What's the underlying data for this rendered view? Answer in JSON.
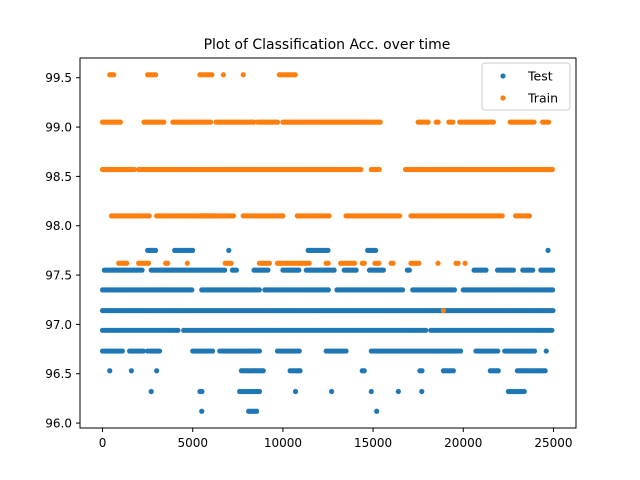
{
  "chart_data": {
    "type": "scatter",
    "title": "Plot of Classification Acc. over time",
    "xlabel": "",
    "ylabel": "",
    "xlim": [
      -1250,
      26250
    ],
    "ylim": [
      95.95,
      99.7
    ],
    "x_ticks": [
      0,
      5000,
      10000,
      15000,
      20000,
      25000
    ],
    "x_tick_labels": [
      "0",
      "5000",
      "10000",
      "15000",
      "20000",
      "25000"
    ],
    "y_ticks": [
      96.0,
      96.5,
      97.0,
      97.5,
      98.0,
      98.5,
      99.0,
      99.5
    ],
    "y_tick_labels": [
      "96.0",
      "96.5",
      "97.0",
      "97.5",
      "98.0",
      "98.5",
      "99.0",
      "99.5"
    ],
    "legend_position": "top-right",
    "series": [
      {
        "name": "Test",
        "color": "#1f77b4",
        "bands": [
          {
            "y": 97.75,
            "ranges": [
              [
                2500,
                3000
              ],
              [
                4000,
                5000
              ],
              [
                7000,
                7100
              ],
              [
                11400,
                12600
              ],
              [
                14700,
                15200
              ],
              [
                24700,
                24800
              ]
            ]
          },
          {
            "y": 97.55,
            "ranges": [
              [
                100,
                2200
              ],
              [
                2700,
                6800
              ],
              [
                7200,
                7500
              ],
              [
                8400,
                9200
              ],
              [
                10000,
                10900
              ],
              [
                11300,
                12900
              ],
              [
                13400,
                14100
              ],
              [
                14800,
                15600
              ],
              [
                16900,
                17100
              ],
              [
                20600,
                21300
              ],
              [
                21900,
                22800
              ],
              [
                23300,
                23900
              ],
              [
                24300,
                25000
              ]
            ]
          },
          {
            "y": 97.35,
            "ranges": [
              [
                0,
                5000
              ],
              [
                5500,
                8700
              ],
              [
                9000,
                12600
              ],
              [
                13000,
                16700
              ],
              [
                17200,
                19600
              ],
              [
                20000,
                25000
              ]
            ]
          },
          {
            "y": 97.14,
            "ranges": [
              [
                0,
                25000
              ]
            ]
          },
          {
            "y": 96.94,
            "ranges": [
              [
                0,
                4200
              ],
              [
                4500,
                18000
              ],
              [
                18200,
                25000
              ]
            ]
          },
          {
            "y": 96.73,
            "ranges": [
              [
                0,
                1200
              ],
              [
                1500,
                2300
              ],
              [
                2500,
                3200
              ],
              [
                5000,
                6100
              ],
              [
                6500,
                8800
              ],
              [
                9700,
                11000
              ],
              [
                12400,
                13600
              ],
              [
                14900,
                19900
              ],
              [
                20700,
                22000
              ],
              [
                22300,
                24000
              ],
              [
                24600,
                24700
              ]
            ]
          },
          {
            "y": 96.53,
            "ranges": [
              [
                400,
                500
              ],
              [
                1600,
                1700
              ],
              [
                3000,
                3100
              ],
              [
                7700,
                9000
              ],
              [
                10400,
                11000
              ],
              [
                14400,
                14600
              ],
              [
                17600,
                17800
              ],
              [
                18900,
                19500
              ],
              [
                21500,
                22000
              ],
              [
                23000,
                24600
              ]
            ]
          },
          {
            "y": 96.32,
            "ranges": [
              [
                2700,
                2800
              ],
              [
                5400,
                5600
              ],
              [
                7600,
                8700
              ],
              [
                10700,
                10800
              ],
              [
                12700,
                12800
              ],
              [
                14900,
                15000
              ],
              [
                16400,
                16500
              ],
              [
                17700,
                17800
              ],
              [
                22500,
                23400
              ]
            ]
          },
          {
            "y": 96.12,
            "ranges": [
              [
                5500,
                5600
              ],
              [
                8100,
                8600
              ],
              [
                15200,
                15300
              ]
            ]
          }
        ],
        "singles": []
      },
      {
        "name": "Train",
        "color": "#ff7f0e",
        "bands": [
          {
            "y": 99.53,
            "ranges": [
              [
                400,
                700
              ],
              [
                2500,
                3000
              ],
              [
                5400,
                6100
              ],
              [
                6700,
                6800
              ],
              [
                7800,
                7900
              ],
              [
                9800,
                10700
              ]
            ]
          },
          {
            "y": 99.05,
            "ranges": [
              [
                0,
                1000
              ],
              [
                2300,
                3400
              ],
              [
                3900,
                6000
              ],
              [
                6300,
                8400
              ],
              [
                8600,
                9700
              ],
              [
                10000,
                15400
              ],
              [
                17500,
                18100
              ],
              [
                18500,
                18700
              ],
              [
                19200,
                19500
              ],
              [
                19800,
                21700
              ],
              [
                22600,
                24000
              ],
              [
                24400,
                24800
              ]
            ]
          },
          {
            "y": 98.57,
            "ranges": [
              [
                0,
                1800
              ],
              [
                2000,
                14400
              ],
              [
                14900,
                15400
              ],
              [
                16800,
                25000
              ]
            ]
          },
          {
            "y": 98.1,
            "ranges": [
              [
                500,
                2600
              ],
              [
                3000,
                6000
              ],
              [
                5500,
                7300
              ],
              [
                7800,
                10000
              ],
              [
                10800,
                12600
              ],
              [
                13500,
                16500
              ],
              [
                17100,
                22200
              ],
              [
                22900,
                23700
              ]
            ]
          },
          {
            "y": 97.62,
            "ranges": [
              [
                900,
                1400
              ],
              [
                2000,
                2600
              ],
              [
                3500,
                3700
              ],
              [
                4700,
                4800
              ],
              [
                6800,
                7200
              ],
              [
                8700,
                9300
              ],
              [
                9700,
                11500
              ],
              [
                12400,
                12600
              ],
              [
                13200,
                14000
              ],
              [
                14400,
                14600
              ],
              [
                15100,
                15400
              ],
              [
                16000,
                16200
              ],
              [
                17100,
                17600
              ],
              [
                18600,
                18700
              ],
              [
                19600,
                19800
              ],
              [
                20100,
                20200
              ]
            ]
          }
        ],
        "singles": [
          [
            18900,
            97.14
          ]
        ]
      }
    ]
  }
}
